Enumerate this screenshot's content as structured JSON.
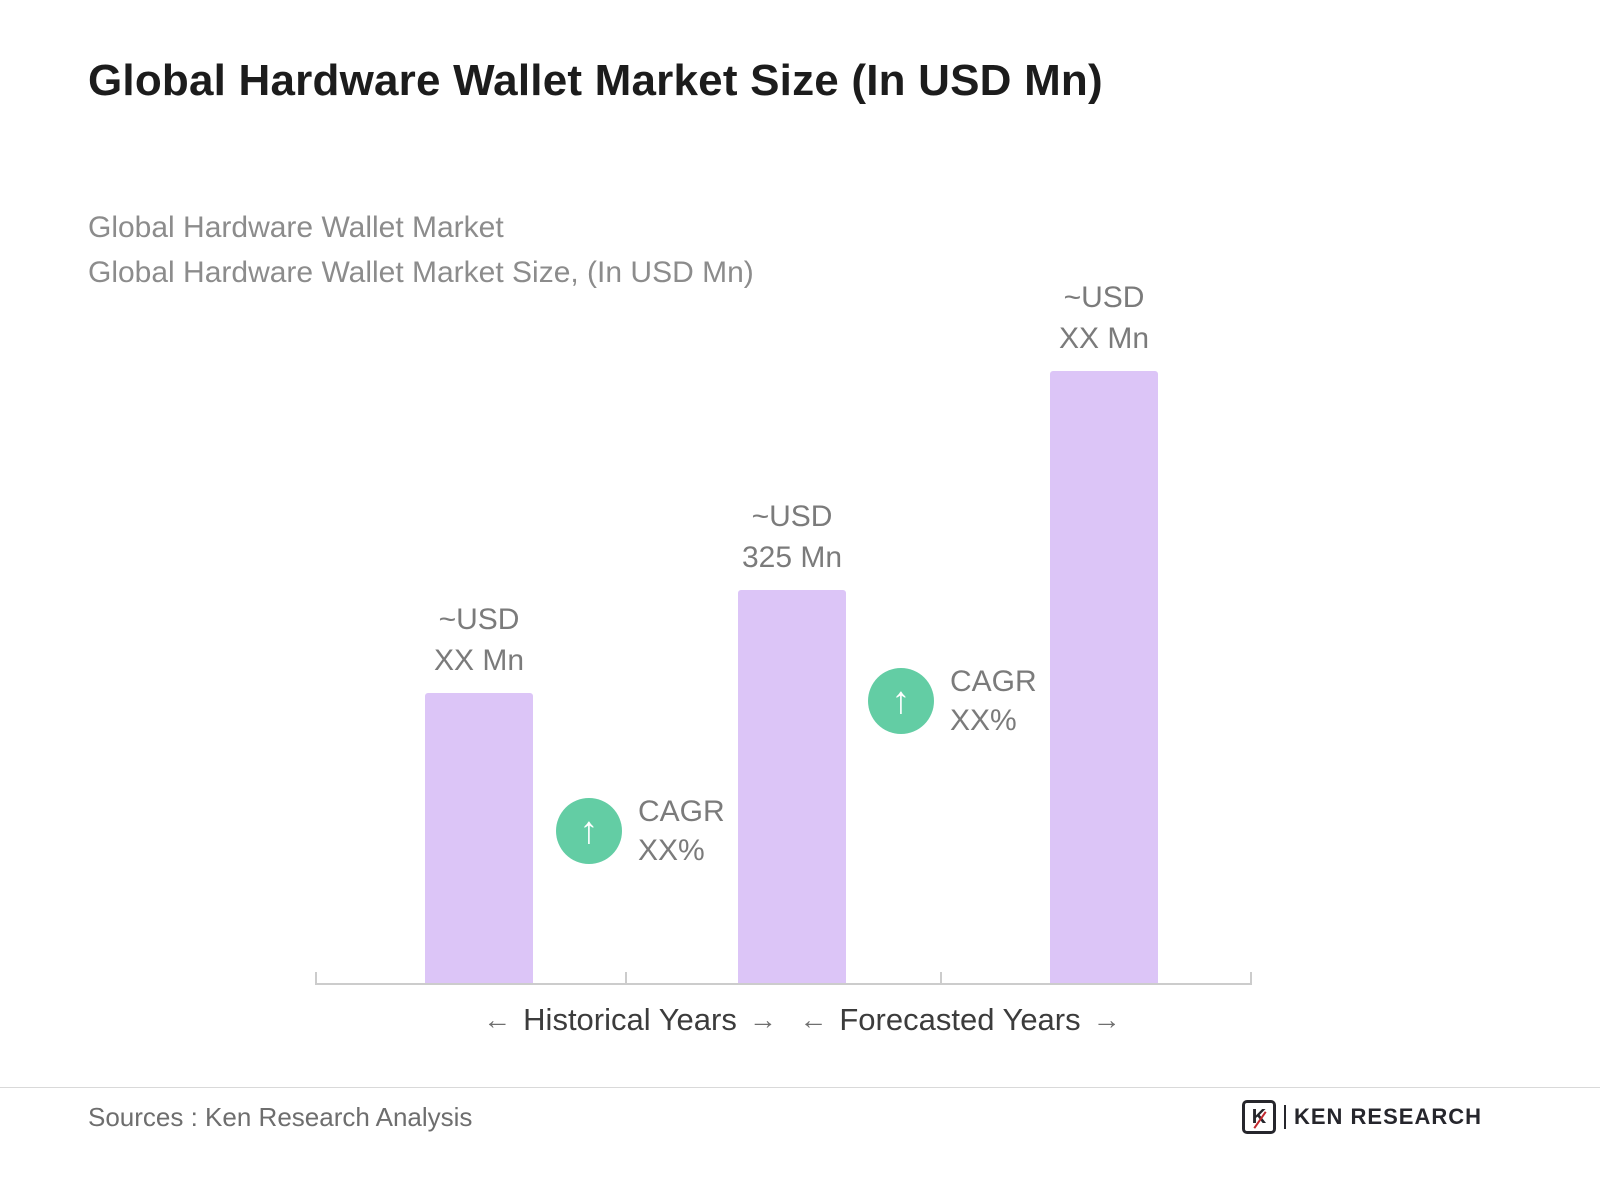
{
  "chart_data": {
    "type": "bar",
    "title": "Global Hardware Wallet Market Size (In USD Mn)",
    "subtitle_lines": [
      "Global Hardware Wallet Market",
      "Global Hardware Wallet Market Size, (In USD Mn)"
    ],
    "values": [
      240,
      325,
      505
    ],
    "values_note": "only middle bar labeled 325; outer bars labeled XX, heights estimated",
    "value_labels": [
      "~USD\nXX Mn",
      "~USD\n325 Mn",
      "~USD\nXX Mn"
    ],
    "annotations": [
      {
        "icon": "arrow-up-circle",
        "text": "CAGR\nXX%"
      },
      {
        "icon": "arrow-up-circle",
        "text": "CAGR\nXX%"
      }
    ],
    "axis": {
      "arrow_left": "←",
      "arrow_right": "→",
      "segments": [
        {
          "label": "Historical Years"
        },
        {
          "label": "Forecasted Years"
        }
      ]
    },
    "grid": false,
    "legend": false
  },
  "colors": {
    "bar": "#dcc5f7",
    "annotation_circle": "#63cda4",
    "title": "#1c1c1c",
    "subtitle": "#8c8c8c",
    "muted_text": "#7b7b7b"
  },
  "icons": {
    "up_arrow": "↑"
  },
  "footer": {
    "sources": "Sources : Ken Research Analysis",
    "logo_letter": "K",
    "logo_text": "KEN RESEARCH"
  }
}
